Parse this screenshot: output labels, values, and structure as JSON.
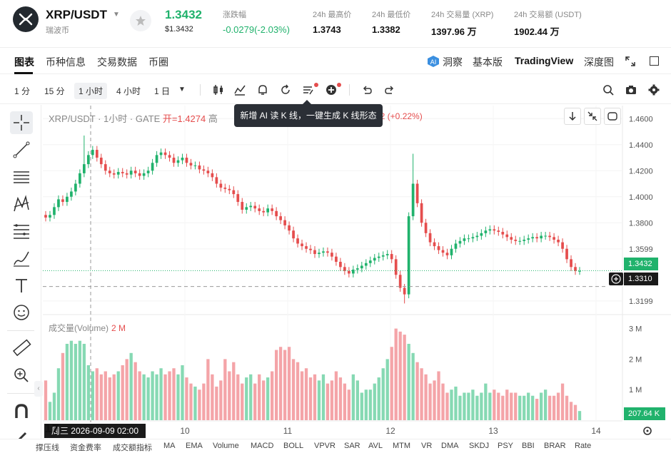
{
  "header": {
    "pair": "XRP/USDT",
    "pair_sub": "瑞波币",
    "price": "1.3432",
    "price_usd": "$1.3432",
    "change_label": "涨跌幅",
    "change_value": "-0.0279(-2.03%)",
    "high_label": "24h 最高价",
    "high_value": "1.3743",
    "low_label": "24h 最低价",
    "low_value": "1.3382",
    "vol_label": "24h 交易量 (XRP)",
    "vol_value": "1397.96 万",
    "amt_label": "24h 交易额 (USDT)",
    "amt_value": "1902.44 万",
    "accent_green": "#20b26c",
    "accent_red": "#e54d4d"
  },
  "tabs": {
    "items": [
      "图表",
      "币种信息",
      "交易数据",
      "币圈"
    ],
    "right": [
      "洞察",
      "基本版",
      "TradingView",
      "深度图"
    ]
  },
  "toolbar": {
    "timeframes": [
      "1 分",
      "15 分",
      "1 小时",
      "4 小时",
      "1 日"
    ],
    "active": "1 小时"
  },
  "tooltip": "新增 AI 读 K 线，一键生成 K 线形态",
  "legend": {
    "title": "XRP/USDT · 1小时 · GATE",
    "open_label": "开=1.4274",
    "hidden_part": "高",
    "tail": "32 (+0.22%)"
  },
  "volume_legend": {
    "label": "成交量(Volume)",
    "value": "2 M"
  },
  "price_tags": {
    "last": "1.3432",
    "cross": "1.3310",
    "volume": "207.64 K"
  },
  "crosshair_time": "周三 2026-09-09   02:00",
  "chart_data": {
    "type": "candlestick",
    "symbol": "XRP/USDT",
    "interval": "1小时",
    "y_ticks": [
      "1.4600",
      "1.4400",
      "1.4200",
      "1.4000",
      "1.3800",
      "1.3599",
      "1.3432",
      "1.3199"
    ],
    "volume_ticks": [
      "3 M",
      "2 M",
      "1 M"
    ],
    "x_ticks": [
      "10",
      "11",
      "12",
      "13",
      "14"
    ],
    "close_points": [
      1.384,
      1.386,
      1.392,
      1.398,
      1.396,
      1.4,
      1.404,
      1.41,
      1.418,
      1.425,
      1.432,
      1.436,
      1.43,
      1.425,
      1.42,
      1.418,
      1.417,
      1.419,
      1.418,
      1.417,
      1.42,
      1.418,
      1.416,
      1.418,
      1.42,
      1.426,
      1.432,
      1.434,
      1.432,
      1.43,
      1.426,
      1.428,
      1.43,
      1.426,
      1.424,
      1.424,
      1.421,
      1.42,
      1.418,
      1.415,
      1.41,
      1.407,
      1.406,
      1.405,
      1.402,
      1.396,
      1.39,
      1.392,
      1.393,
      1.391,
      1.389,
      1.388,
      1.391,
      1.389,
      1.385,
      1.382,
      1.378,
      1.374,
      1.368,
      1.364,
      1.362,
      1.36,
      1.359,
      1.356,
      1.357,
      1.358,
      1.357,
      1.354,
      1.35,
      1.346,
      1.343,
      1.341,
      1.344,
      1.345,
      1.347,
      1.349,
      1.351,
      1.353,
      1.354,
      1.355,
      1.356,
      1.352,
      1.34,
      1.33,
      1.325,
      1.385,
      1.41,
      1.395,
      1.38,
      1.372,
      1.365,
      1.362,
      1.359,
      1.357,
      1.355,
      1.36,
      1.364,
      1.366,
      1.368,
      1.368,
      1.369,
      1.37,
      1.372,
      1.374,
      1.375,
      1.374,
      1.373,
      1.371,
      1.369,
      1.367,
      1.366,
      1.366,
      1.367,
      1.368,
      1.369,
      1.368,
      1.37,
      1.37,
      1.369,
      1.367,
      1.365,
      1.36,
      1.352,
      1.346,
      1.343,
      1.343
    ],
    "volumes": [
      1.3,
      0.6,
      0.9,
      1.7,
      2.2,
      2.5,
      2.6,
      2.5,
      2.6,
      2.5,
      1.8,
      1.6,
      1.7,
      1.5,
      1.6,
      1.4,
      1.5,
      1.6,
      1.8,
      2.0,
      2.2,
      1.9,
      1.6,
      1.5,
      1.4,
      1.6,
      1.5,
      1.7,
      1.5,
      1.6,
      1.7,
      1.5,
      1.8,
      1.4,
      1.2,
      1.1,
      1.0,
      1.2,
      2.0,
      1.5,
      1.1,
      1.3,
      2.0,
      1.6,
      1.9,
      1.5,
      1.2,
      1.4,
      1.5,
      1.2,
      1.5,
      1.3,
      1.4,
      1.6,
      2.3,
      2.4,
      2.3,
      2.4,
      2.0,
      1.9,
      1.6,
      1.7,
      1.4,
      1.5,
      1.3,
      1.5,
      1.2,
      1.3,
      1.6,
      1.4,
      1.2,
      1.0,
      1.5,
      1.3,
      0.9,
      1.0,
      1.0,
      1.2,
      1.4,
      1.7,
      2.0,
      2.4,
      3.0,
      2.9,
      2.8,
      2.5,
      2.2,
      1.9,
      1.7,
      1.5,
      1.2,
      1.3,
      1.6,
      1.2,
      0.9,
      1.0,
      1.1,
      0.8,
      0.9,
      0.9,
      1.0,
      0.8,
      0.9,
      1.2,
      0.9,
      1.0,
      0.9,
      0.8,
      1.0,
      0.9,
      0.9,
      0.8,
      0.8,
      0.9,
      0.8,
      0.7,
      0.9,
      1.0,
      0.8,
      0.8,
      0.9,
      1.2,
      0.8,
      0.6,
      0.5,
      0.3
    ]
  }
}
